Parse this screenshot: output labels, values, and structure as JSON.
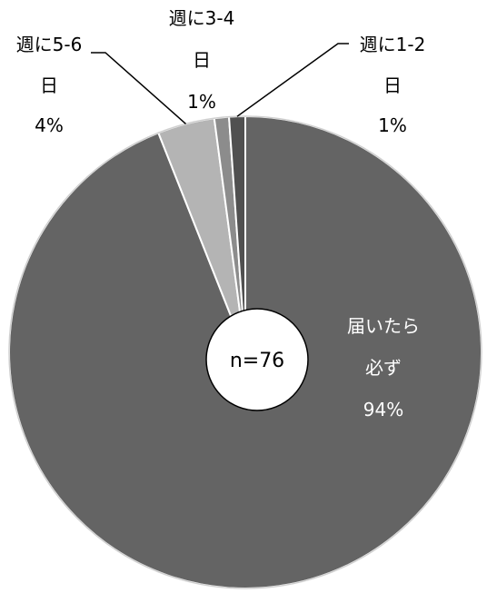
{
  "chart_data": {
    "type": "pie",
    "title": "",
    "center_label": "n=76",
    "start_angle_deg": 0,
    "direction": "clockwise",
    "slices": [
      {
        "label_lines": [
          "届いたら",
          "必ず"
        ],
        "percent_label": "94%",
        "value": 94.0,
        "color": "#646464"
      },
      {
        "label_lines": [
          "週に5-6",
          "日"
        ],
        "percent_label": "4%",
        "value": 3.9,
        "color": "#b4b4b4"
      },
      {
        "label_lines": [
          "週に3-4",
          "日"
        ],
        "percent_label": "1%",
        "value": 1.0,
        "color": "#8c8c8c"
      },
      {
        "label_lines": [
          "週に1-2",
          "日"
        ],
        "percent_label": "1%",
        "value": 1.1,
        "color": "#505050"
      }
    ],
    "slice_border_color": "#ffffff",
    "outer_border_color": "#d0d0d0"
  }
}
